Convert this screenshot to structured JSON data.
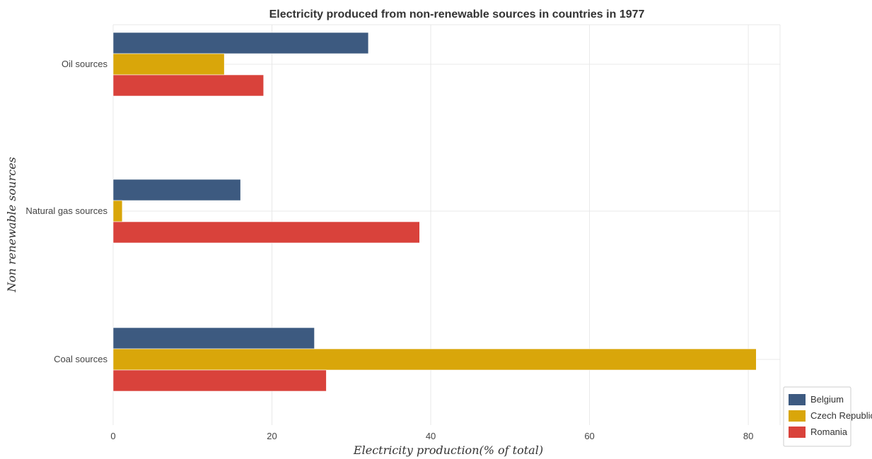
{
  "chart_data": {
    "type": "bar",
    "orientation": "horizontal",
    "title": "Electricity produced from non-renewable sources in countries in 1977",
    "xlabel": "Electricity production(% of total)",
    "ylabel": "Non renewable sources",
    "categories": [
      "Coal sources",
      "Natural gas sources",
      "Oil sources"
    ],
    "xlim": [
      0,
      84
    ],
    "xticks": [
      0,
      20,
      40,
      60,
      80
    ],
    "grid": true,
    "legend_position": "bottom-right",
    "series": [
      {
        "name": "Belgium",
        "color": "#3d5a80",
        "values": [
          25.35,
          16.05,
          32.15
        ]
      },
      {
        "name": "Czech Republic",
        "color": "#d9a60a",
        "values": [
          81.0,
          1.15,
          14.0
        ]
      },
      {
        "name": "Romania",
        "color": "#d9423b",
        "values": [
          26.85,
          38.6,
          18.95
        ]
      }
    ]
  }
}
